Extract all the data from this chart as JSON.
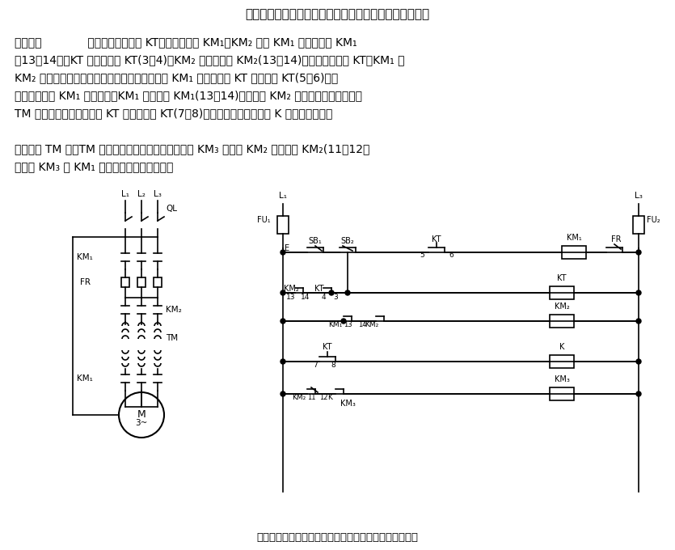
{
  "title_top": "利用时间继电器多余触点的自耦变压器降压启动控制电路",
  "caption_bottom": "利用时间继电器多余触点的自耦变压器降压启动控制电路",
  "body_text": [
    "电路如图             所示，时间继电器 KT、启动接触器 KM₁、KM₂ 通过 KM₁ 的常开触点 KM₁",
    "（13－14）、KT 的常开触点 KT(3－4)、KM₂ 的常开触点 KM₂(13－14)相互联锁。不论 KT、KM₁ 或",
    "KM₂ 自身或回路故障，电动机均不能启动。串于 KM₁ 控制回路的 KT 延时触点 KT(5－6)经延",
    "时后断开，使 KM₁ 失电释放，KM₁ 常开触点 KM₁(13－14)即断，使 KM₂ 失电释放，自耦变压器",
    "TM 退出运行。这样，即使 KT 的延时触点 KT(7－8)接触不良或中间继电器 K 发生故障而不能",
    "",
    "可靠切换 TM 时，TM 也不会因此而烧毁。串于接触器 KM₃ 回路的 KM₂ 常闭触点 KM₂(11－12）",
    "可消除 KM₃ 与 KM₁ 之间的飞弧引起的短路。"
  ],
  "bg_color": "#ffffff",
  "text_color": "#000000",
  "font_size_title": 11,
  "font_size_body": 10,
  "font_size_caption": 9.5
}
